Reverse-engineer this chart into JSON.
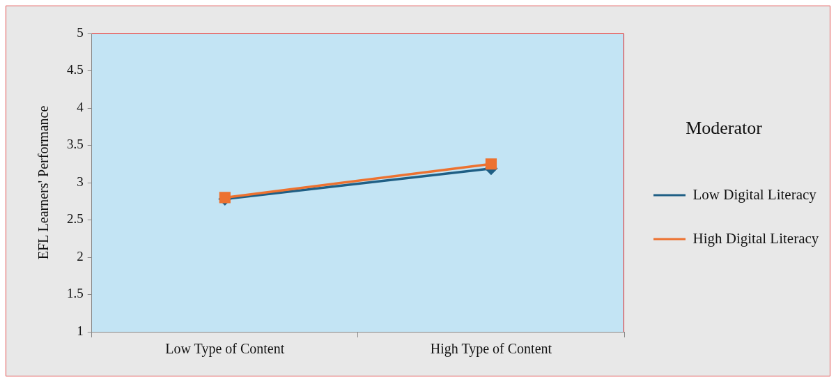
{
  "chart_data": {
    "type": "line",
    "ylabel": "EFL Learners' Performance",
    "legend_title": "Moderator",
    "categories": [
      "Low Type of Content",
      "High Type of Content"
    ],
    "series": [
      {
        "name": "Low Digital Literacy",
        "color": "#1f5f85",
        "values": [
          2.78,
          3.19
        ],
        "marker": "diamond"
      },
      {
        "name": "High Digital Literacy",
        "color": "#ed7230",
        "values": [
          2.8,
          3.25
        ],
        "marker": "square"
      }
    ],
    "ylim": [
      1,
      5
    ],
    "yticks": [
      1,
      1.5,
      2,
      2.5,
      3,
      3.5,
      4,
      4.5,
      5
    ],
    "grid": false,
    "legend": "right",
    "line_style": "solid"
  }
}
